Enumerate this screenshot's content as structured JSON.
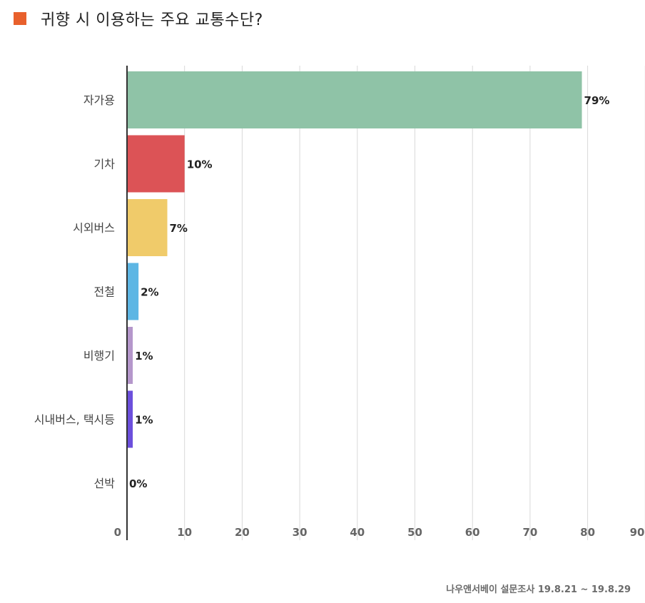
{
  "header": {
    "title": "귀향 시 이용하는 주요 교통수단?",
    "marker_color": "#E8602C"
  },
  "source": {
    "text": "나우앤서베이 설문조사 19.8.21 ~ 19.8.29"
  },
  "chart_data": {
    "type": "bar",
    "orientation": "horizontal",
    "title": "",
    "xlabel": "",
    "ylabel": "",
    "xlim": [
      0,
      90
    ],
    "xticks": [
      0,
      10,
      20,
      30,
      40,
      50,
      60,
      70,
      80,
      90
    ],
    "grid": true,
    "categories": [
      "자가용",
      "기차",
      "시외버스",
      "전철",
      "비행기",
      "시내버스, 택시등",
      "선박"
    ],
    "values": [
      79,
      10,
      7,
      2,
      1,
      1,
      0
    ],
    "value_labels": [
      "79%",
      "10%",
      "7%",
      "2%",
      "1%",
      "1%",
      "0%"
    ],
    "colors": [
      "#8FC3A7",
      "#DC5356",
      "#F0CB6A",
      "#5DB6E4",
      "#B597CB",
      "#6C4FDC",
      "#6C4FDC"
    ]
  }
}
